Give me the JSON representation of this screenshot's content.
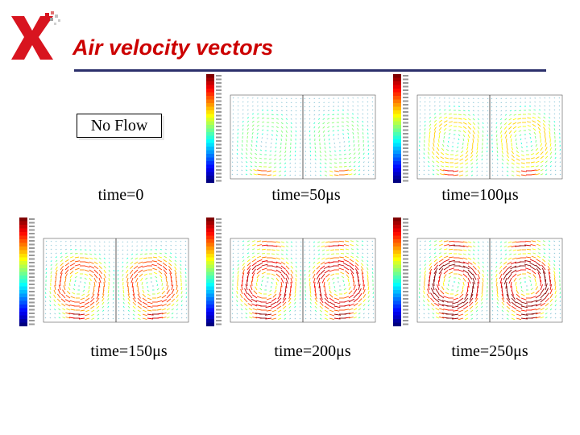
{
  "slide": {
    "title": "Air velocity vectors",
    "colors": {
      "title": "#cc0000",
      "rule": "#2b2f6b",
      "logo_red": "#d8141f"
    }
  },
  "no_flow_label": "No Flow",
  "panels": [
    {
      "caption": "time=0",
      "intensity": 0,
      "image": "none"
    },
    {
      "caption": "time=50μs",
      "intensity": 0.25
    },
    {
      "caption": "time=100μs",
      "intensity": 0.5
    },
    {
      "caption": "time=150μs",
      "intensity": 0.75
    },
    {
      "caption": "time=200μs",
      "intensity": 0.9
    },
    {
      "caption": "time=250μs",
      "intensity": 1.0
    }
  ]
}
